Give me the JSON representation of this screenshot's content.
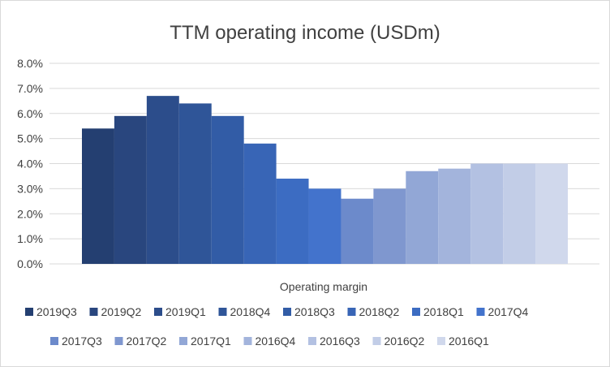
{
  "chart_data": {
    "type": "bar",
    "title": "TTM operating income (USDm)",
    "xlabel": "Operating margin",
    "ylabel": "",
    "categories": [
      "Operating margin"
    ],
    "ylim": [
      0,
      0.08
    ],
    "yticks": [
      0.0,
      0.01,
      0.02,
      0.03,
      0.04,
      0.05,
      0.06,
      0.07,
      0.08
    ],
    "ytick_labels": [
      "0.0%",
      "1.0%",
      "2.0%",
      "3.0%",
      "4.0%",
      "5.0%",
      "6.0%",
      "7.0%",
      "8.0%"
    ],
    "grid": true,
    "legend_position": "bottom",
    "series": [
      {
        "name": "2019Q3",
        "values": [
          0.054
        ],
        "color": "#243f71"
      },
      {
        "name": "2019Q2",
        "values": [
          0.059
        ],
        "color": "#29467e"
      },
      {
        "name": "2019Q1",
        "values": [
          0.067
        ],
        "color": "#2c4d8b"
      },
      {
        "name": "2018Q4",
        "values": [
          0.064
        ],
        "color": "#2f5598"
      },
      {
        "name": "2018Q3",
        "values": [
          0.059
        ],
        "color": "#325ca6"
      },
      {
        "name": "2018Q2",
        "values": [
          0.048
        ],
        "color": "#3865b6"
      },
      {
        "name": "2018Q1",
        "values": [
          0.034
        ],
        "color": "#3c6cc2"
      },
      {
        "name": "2017Q4",
        "values": [
          0.03
        ],
        "color": "#4373cc"
      },
      {
        "name": "2017Q3",
        "values": [
          0.026
        ],
        "color": "#6c8acb"
      },
      {
        "name": "2017Q2",
        "values": [
          0.03
        ],
        "color": "#7f97cf"
      },
      {
        "name": "2017Q1",
        "values": [
          0.037
        ],
        "color": "#92a7d6"
      },
      {
        "name": "2016Q4",
        "values": [
          0.038
        ],
        "color": "#a3b4dc"
      },
      {
        "name": "2016Q3",
        "values": [
          0.04
        ],
        "color": "#b3c1e2"
      },
      {
        "name": "2016Q2",
        "values": [
          0.04
        ],
        "color": "#c2cde7"
      },
      {
        "name": "2016Q1",
        "values": [
          0.04
        ],
        "color": "#d0d8ec"
      }
    ]
  }
}
